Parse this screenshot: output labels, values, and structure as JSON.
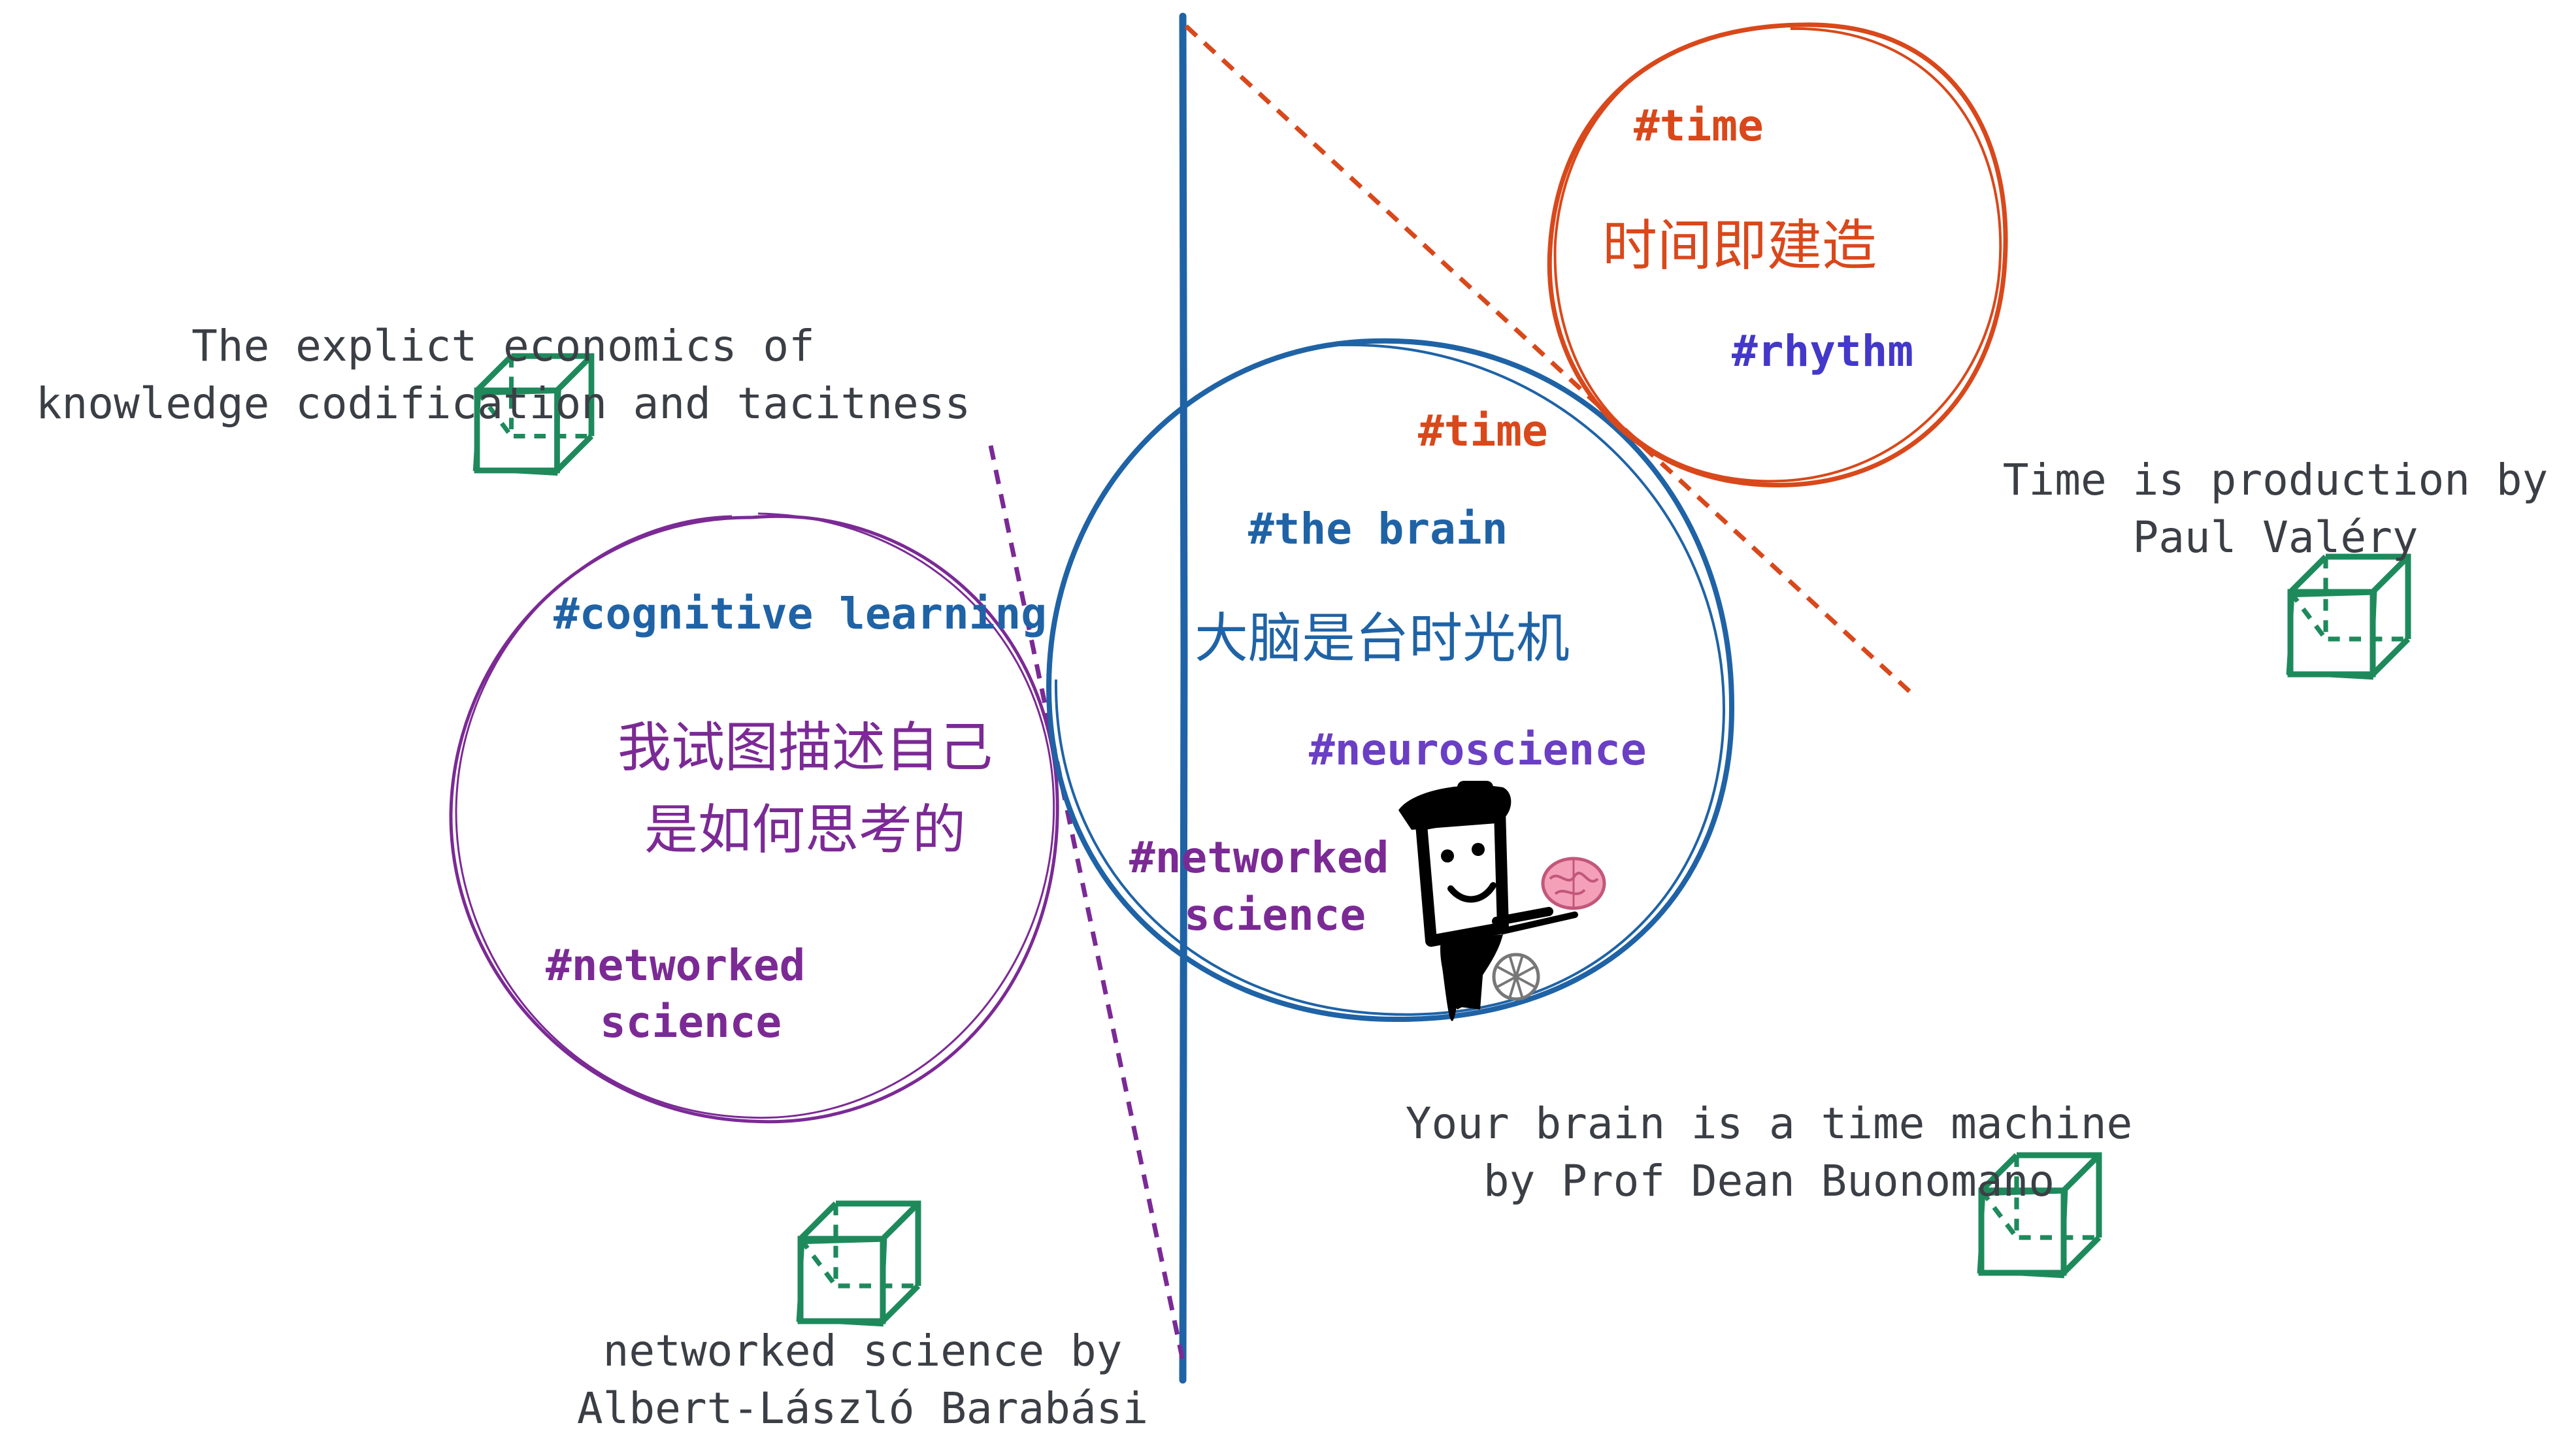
{
  "colors": {
    "ink": "#3b3f45",
    "purple": "#7b2a95",
    "blue": "#1f63a6",
    "orange": "#d9481b",
    "indigo": "#4338c9",
    "green": "#1e8a5c",
    "violet": "#6a3fc4"
  },
  "nodes": {
    "purple_circle": {
      "tag_cognitive": "#cognitive learning",
      "chinese_line1": "我试图描述自己",
      "chinese_line2": "是如何思考的",
      "tag_networked_line1": "#networked",
      "tag_networked_line2": "science"
    },
    "blue_circle": {
      "tag_time": "#time",
      "tag_brain": "#the brain",
      "chinese": "大脑是台时光机",
      "tag_neuroscience": "#neuroscience",
      "tag_networked_line1": "#networked",
      "tag_networked_line2": "science"
    },
    "orange_circle": {
      "tag_time": "#time",
      "chinese": "时间即建造",
      "tag_rhythm": "#rhythm"
    }
  },
  "sources": {
    "economics_line1": "The explict economics of",
    "economics_line2": "knowledge codification and tacitness",
    "valery_line1": "Time is production by",
    "valery_line2": "Paul Valéry",
    "buonomano_line1": "Your brain is a time machine",
    "buonomano_line2": "by Prof Dean Buonomano",
    "barabasi_line1": "networked science by",
    "barabasi_line2": "Albert-László Barabási"
  },
  "icons": {
    "cube": "cube-icon",
    "brain": "brain-icon",
    "character": "doodle-character-icon"
  }
}
